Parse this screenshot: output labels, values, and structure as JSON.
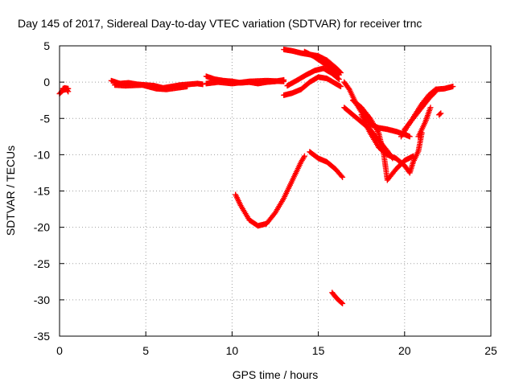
{
  "chart_data": {
    "type": "scatter",
    "title": "Day 145 of 2017, Sidereal Day-to-day VTEC variation (SDTVAR) for receiver trnc",
    "xlabel": "GPS time / hours",
    "ylabel": "SDTVAR / TECUs",
    "xlim": [
      0,
      25
    ],
    "ylim": [
      -35,
      5
    ],
    "xticks": [
      0,
      5,
      10,
      15,
      20,
      25
    ],
    "yticks": [
      -35,
      -30,
      -25,
      -20,
      -15,
      -10,
      -5,
      0,
      5
    ],
    "grid": true,
    "marker": "+",
    "series_color": "#ff0000",
    "segments": [
      [
        [
          0.0,
          -1.6
        ],
        [
          0.2,
          -1.1
        ],
        [
          0.4,
          -1.0
        ],
        [
          0.5,
          -1.3
        ]
      ],
      [
        [
          0.2,
          -0.9
        ],
        [
          0.3,
          -0.8
        ],
        [
          0.5,
          -0.9
        ]
      ],
      [
        [
          3.0,
          0.2
        ],
        [
          3.5,
          -0.2
        ],
        [
          4.0,
          -0.1
        ],
        [
          4.5,
          -0.3
        ],
        [
          5.0,
          -0.4
        ],
        [
          5.5,
          -0.5
        ],
        [
          6.0,
          -0.8
        ],
        [
          6.5,
          -0.6
        ],
        [
          7.0,
          -0.4
        ],
        [
          7.5,
          -0.3
        ],
        [
          8.0,
          -0.2
        ],
        [
          8.3,
          -0.3
        ]
      ],
      [
        [
          3.2,
          -0.4
        ],
        [
          3.8,
          -0.5
        ],
        [
          4.8,
          -0.4
        ],
        [
          5.6,
          -0.9
        ],
        [
          6.2,
          -1.0
        ],
        [
          6.8,
          -0.8
        ],
        [
          7.4,
          -0.6
        ]
      ],
      [
        [
          8.5,
          0.8
        ],
        [
          9.0,
          0.4
        ],
        [
          9.5,
          0.2
        ],
        [
          10.0,
          0.1
        ],
        [
          10.5,
          -0.1
        ],
        [
          11.0,
          0.0
        ],
        [
          11.5,
          -0.2
        ],
        [
          12.0,
          0.0
        ],
        [
          12.5,
          0.1
        ],
        [
          13.0,
          0.3
        ]
      ],
      [
        [
          8.5,
          -0.2
        ],
        [
          9.2,
          0.0
        ],
        [
          10.0,
          -0.2
        ],
        [
          11.0,
          0.1
        ],
        [
          12.0,
          0.2
        ],
        [
          13.0,
          0.1
        ]
      ],
      [
        [
          13.0,
          4.5
        ],
        [
          13.5,
          4.3
        ],
        [
          14.0,
          4.0
        ],
        [
          14.5,
          3.8
        ],
        [
          15.0,
          3.6
        ],
        [
          15.5,
          3.0
        ],
        [
          16.0,
          2.0
        ],
        [
          16.3,
          1.3
        ]
      ],
      [
        [
          14.2,
          4.2
        ],
        [
          14.7,
          3.6
        ],
        [
          15.2,
          2.8
        ],
        [
          15.7,
          2.0
        ],
        [
          16.2,
          1.0
        ]
      ],
      [
        [
          13.0,
          -1.8
        ],
        [
          13.5,
          -1.5
        ],
        [
          14.0,
          -1.0
        ],
        [
          14.5,
          0.0
        ],
        [
          15.0,
          0.7
        ],
        [
          15.5,
          0.5
        ],
        [
          16.0,
          -0.2
        ],
        [
          16.3,
          -0.6
        ]
      ],
      [
        [
          13.2,
          -0.5
        ],
        [
          13.8,
          0.3
        ],
        [
          14.3,
          1.0
        ],
        [
          14.8,
          1.6
        ],
        [
          15.3,
          1.9
        ],
        [
          15.8,
          1.2
        ],
        [
          16.2,
          0.4
        ]
      ],
      [
        [
          16.5,
          0.0
        ],
        [
          16.8,
          -1.0
        ],
        [
          17.2,
          -3.0
        ],
        [
          17.6,
          -4.5
        ],
        [
          18.0,
          -5.8
        ],
        [
          18.5,
          -6.3
        ],
        [
          19.0,
          -6.5
        ],
        [
          19.5,
          -6.8
        ],
        [
          20.0,
          -7.2
        ],
        [
          20.3,
          -7.5
        ]
      ],
      [
        [
          16.5,
          -3.5
        ],
        [
          17.0,
          -4.5
        ],
        [
          17.5,
          -5.5
        ],
        [
          18.0,
          -6.5
        ],
        [
          18.5,
          -8.0
        ],
        [
          19.0,
          -9.5
        ],
        [
          19.3,
          -10.5
        ]
      ],
      [
        [
          17.0,
          -2.5
        ],
        [
          17.5,
          -3.5
        ],
        [
          18.0,
          -5.0
        ],
        [
          18.5,
          -7.0
        ],
        [
          18.8,
          -10.0
        ],
        [
          19.0,
          -13.5
        ],
        [
          19.5,
          -12.0
        ],
        [
          20.0,
          -10.8
        ],
        [
          20.5,
          -10.2
        ]
      ],
      [
        [
          17.5,
          -4.5
        ],
        [
          18.0,
          -7.0
        ],
        [
          18.5,
          -9.0
        ],
        [
          19.0,
          -10.0
        ],
        [
          19.5,
          -10.5
        ],
        [
          20.0,
          -11.5
        ],
        [
          20.3,
          -12.5
        ],
        [
          20.5,
          -11.0
        ],
        [
          20.8,
          -9.5
        ],
        [
          21.0,
          -7.0
        ]
      ],
      [
        [
          19.8,
          -7.5
        ],
        [
          20.2,
          -6.0
        ],
        [
          20.6,
          -4.5
        ],
        [
          21.0,
          -3.0
        ],
        [
          21.4,
          -1.8
        ],
        [
          21.8,
          -1.0
        ],
        [
          22.3,
          -0.9
        ],
        [
          22.8,
          -0.6
        ]
      ],
      [
        [
          20.0,
          -6.5
        ],
        [
          20.5,
          -5.0
        ],
        [
          21.0,
          -3.5
        ],
        [
          21.5,
          -2.0
        ],
        [
          21.8,
          -1.3
        ]
      ],
      [
        [
          20.8,
          -7.5
        ],
        [
          21.2,
          -5.5
        ],
        [
          21.5,
          -3.5
        ]
      ],
      [
        [
          22.0,
          -4.5
        ],
        [
          22.1,
          -4.3
        ]
      ],
      [
        [
          10.2,
          -15.5
        ],
        [
          10.5,
          -17.0
        ],
        [
          11.0,
          -19.0
        ],
        [
          11.5,
          -19.8
        ],
        [
          12.0,
          -19.5
        ],
        [
          12.5,
          -18.0
        ],
        [
          13.0,
          -16.0
        ],
        [
          13.5,
          -13.5
        ],
        [
          14.0,
          -11.0
        ],
        [
          14.2,
          -10.2
        ]
      ],
      [
        [
          14.5,
          -9.6
        ],
        [
          15.0,
          -10.5
        ],
        [
          15.5,
          -11.0
        ],
        [
          16.0,
          -12.0
        ],
        [
          16.4,
          -13.1
        ]
      ],
      [
        [
          15.8,
          -29.0
        ],
        [
          16.0,
          -29.6
        ],
        [
          16.2,
          -30.1
        ],
        [
          16.4,
          -30.5
        ]
      ]
    ]
  }
}
